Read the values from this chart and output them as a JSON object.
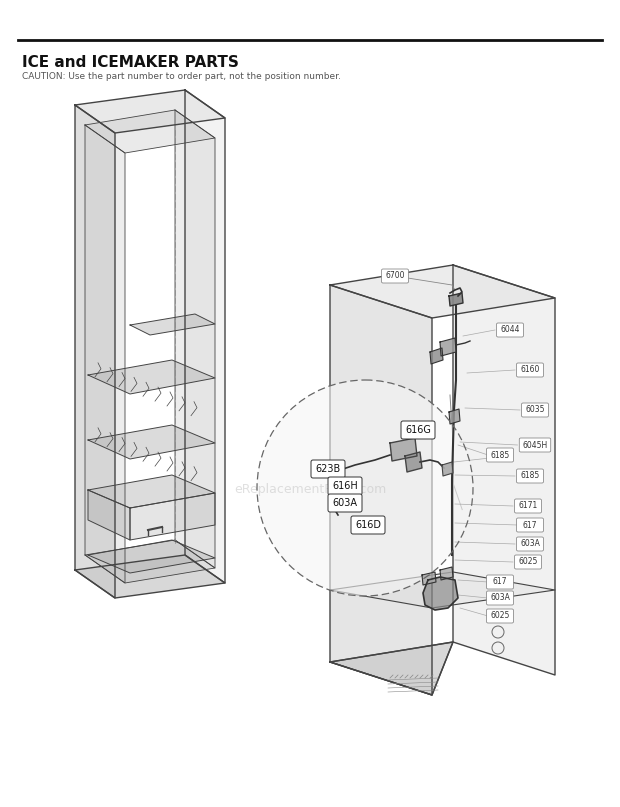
{
  "title_bold": "ICE and ICEMAKER PARTS",
  "caution": "CAUTION: Use the part number to order part, not the position number.",
  "bg_color": "#ffffff",
  "title_color": "#111111",
  "line_color": "#444444",
  "watermark": "eReplacementParts.com",
  "part_labels_circle": [
    "616G",
    "623B",
    "616H",
    "603A",
    "616D"
  ],
  "right_labels": [
    "6700",
    "6044",
    "6160",
    "6035",
    "6045H",
    "6185",
    "6171",
    "617",
    "603A",
    "6185",
    "6025"
  ]
}
